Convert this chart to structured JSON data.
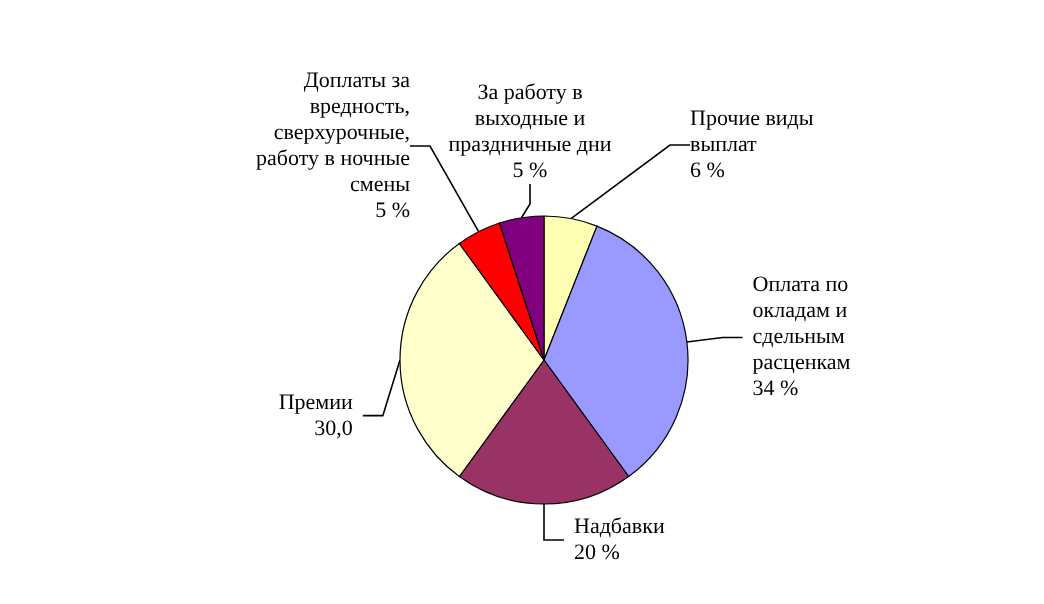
{
  "chart_data": {
    "type": "pie",
    "categories": [
      "Прочие виды выплат",
      "Оплата по окладам и сдельным расценкам",
      "Надбавки",
      "Премии",
      "Доплаты за вредность, сверхурочные, работу в ночные смены",
      "За работу в выходные и праздничные дни"
    ],
    "values": [
      6,
      34,
      20,
      30.0,
      5,
      5
    ],
    "value_labels": [
      "6 %",
      "34 %",
      "20 %",
      "30,0",
      "5 %",
      "5 %"
    ],
    "colors": [
      "#ffffb3",
      "#9999ff",
      "#993366",
      "#ffffcc",
      "#ff0000",
      "#800080"
    ]
  }
}
